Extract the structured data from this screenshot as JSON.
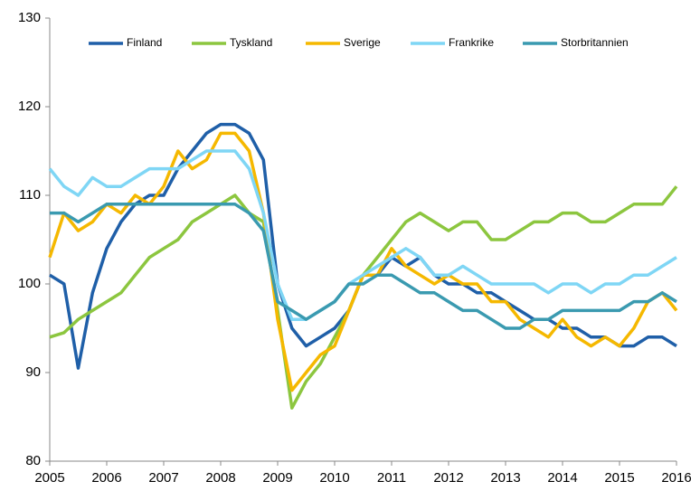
{
  "chart_data": {
    "type": "line",
    "x": [
      2005,
      2005.25,
      2005.5,
      2005.75,
      2006,
      2006.25,
      2006.5,
      2006.75,
      2007,
      2007.25,
      2007.5,
      2007.75,
      2008,
      2008.25,
      2008.5,
      2008.75,
      2009,
      2009.25,
      2009.5,
      2009.75,
      2010,
      2010.25,
      2010.5,
      2010.75,
      2011,
      2011.25,
      2011.5,
      2011.75,
      2012,
      2012.25,
      2012.5,
      2012.75,
      2013,
      2013.25,
      2013.5,
      2013.75,
      2014,
      2014.25,
      2014.5,
      2014.75,
      2015,
      2015.25,
      2015.5,
      2015.75,
      2016
    ],
    "series": [
      {
        "name": "Finland",
        "color": "#1f5fa8",
        "values": [
          101,
          100,
          90.5,
          99,
          104,
          107,
          109,
          110,
          110,
          113,
          115,
          117,
          118,
          118,
          117,
          114,
          100,
          95,
          93,
          94,
          95,
          97,
          101,
          101,
          103,
          102,
          103,
          101,
          100,
          100,
          99,
          99,
          98,
          97,
          96,
          96,
          95,
          95,
          94,
          94,
          93,
          93,
          94,
          94,
          93
        ]
      },
      {
        "name": "Tyskland",
        "color": "#8cc63f",
        "values": [
          94,
          94.5,
          96,
          97,
          98,
          99,
          101,
          103,
          104,
          105,
          107,
          108,
          109,
          110,
          108,
          107,
          97,
          86,
          89,
          91,
          94,
          97,
          101,
          103,
          105,
          107,
          108,
          107,
          106,
          107,
          107,
          105,
          105,
          106,
          107,
          107,
          108,
          108,
          107,
          107,
          108,
          109,
          109,
          109,
          111
        ]
      },
      {
        "name": "Sverige",
        "color": "#f5b800",
        "values": [
          103,
          108,
          106,
          107,
          109,
          108,
          110,
          109,
          111,
          115,
          113,
          114,
          117,
          117,
          115,
          108,
          96,
          88,
          90,
          92,
          93,
          97,
          101,
          101,
          104,
          102,
          101,
          100,
          101,
          100,
          100,
          98,
          98,
          96,
          95,
          94,
          96,
          94,
          93,
          94,
          93,
          95,
          98,
          99,
          97
        ]
      },
      {
        "name": "Frankrike",
        "color": "#7fd6f5",
        "values": [
          113,
          111,
          110,
          112,
          111,
          111,
          112,
          113,
          113,
          113,
          114,
          115,
          115,
          115,
          113,
          108,
          100,
          96,
          96,
          97,
          98,
          100,
          101,
          102,
          103,
          104,
          103,
          101,
          101,
          102,
          101,
          100,
          100,
          100,
          100,
          99,
          100,
          100,
          99,
          100,
          100,
          101,
          101,
          102,
          103
        ]
      },
      {
        "name": "Storbritannien",
        "color": "#3a9ab0",
        "values": [
          108,
          108,
          107,
          108,
          109,
          109,
          109,
          109,
          109,
          109,
          109,
          109,
          109,
          109,
          108,
          106,
          98,
          97,
          96,
          97,
          98,
          100,
          100,
          101,
          101,
          100,
          99,
          99,
          98,
          97,
          97,
          96,
          95,
          95,
          96,
          96,
          97,
          97,
          97,
          97,
          97,
          98,
          98,
          99,
          98
        ]
      }
    ],
    "xlim": [
      2005,
      2016
    ],
    "xticks": [
      2005,
      2006,
      2007,
      2008,
      2009,
      2010,
      2011,
      2012,
      2013,
      2014,
      2015,
      2016
    ],
    "ylim": [
      80,
      130
    ],
    "yticks": [
      80,
      90,
      100,
      110,
      120,
      130
    ]
  }
}
